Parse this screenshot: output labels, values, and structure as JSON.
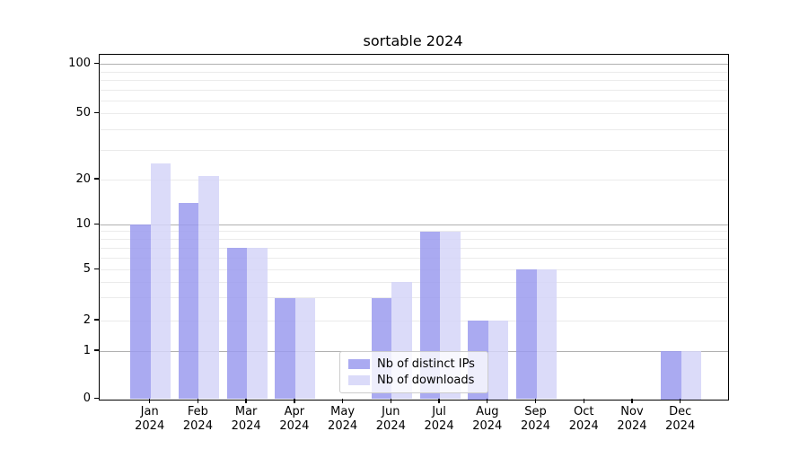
{
  "chart_data": {
    "type": "bar",
    "title": "sortable 2024",
    "categories": [
      "Jan",
      "Feb",
      "Mar",
      "Apr",
      "May",
      "Jun",
      "Jul",
      "Aug",
      "Sep",
      "Oct",
      "Nov",
      "Dec"
    ],
    "category_year": "2024",
    "series": [
      {
        "name": "Nb of distinct IPs",
        "color": "#9b9bef",
        "values": [
          10,
          14,
          7,
          3,
          0,
          3,
          9,
          2,
          5,
          0,
          0,
          1
        ]
      },
      {
        "name": "Nb of downloads",
        "color": "#d5d5f8",
        "values": [
          25,
          21,
          7,
          3,
          0,
          4,
          9,
          2,
          5,
          0,
          0,
          1
        ]
      }
    ],
    "y_ticks": [
      100,
      50,
      20,
      10,
      5,
      2,
      1,
      0
    ],
    "y_minor_gridlines": [
      2,
      3,
      4,
      5,
      6,
      7,
      8,
      9,
      20,
      30,
      40,
      50,
      60,
      70,
      80,
      90
    ],
    "y_major_gridlines": [
      1,
      10,
      100
    ],
    "ylim": [
      0,
      115
    ],
    "yscale": "log-like (0,1,2,5,10,20,50,100)",
    "grid": "horizontal",
    "legend_position": "lower center",
    "colors": {
      "major_grid": "#b0b0b0",
      "minor_grid": "#ebebeb",
      "axis": "#000000",
      "legend_border": "#cccccc"
    }
  }
}
